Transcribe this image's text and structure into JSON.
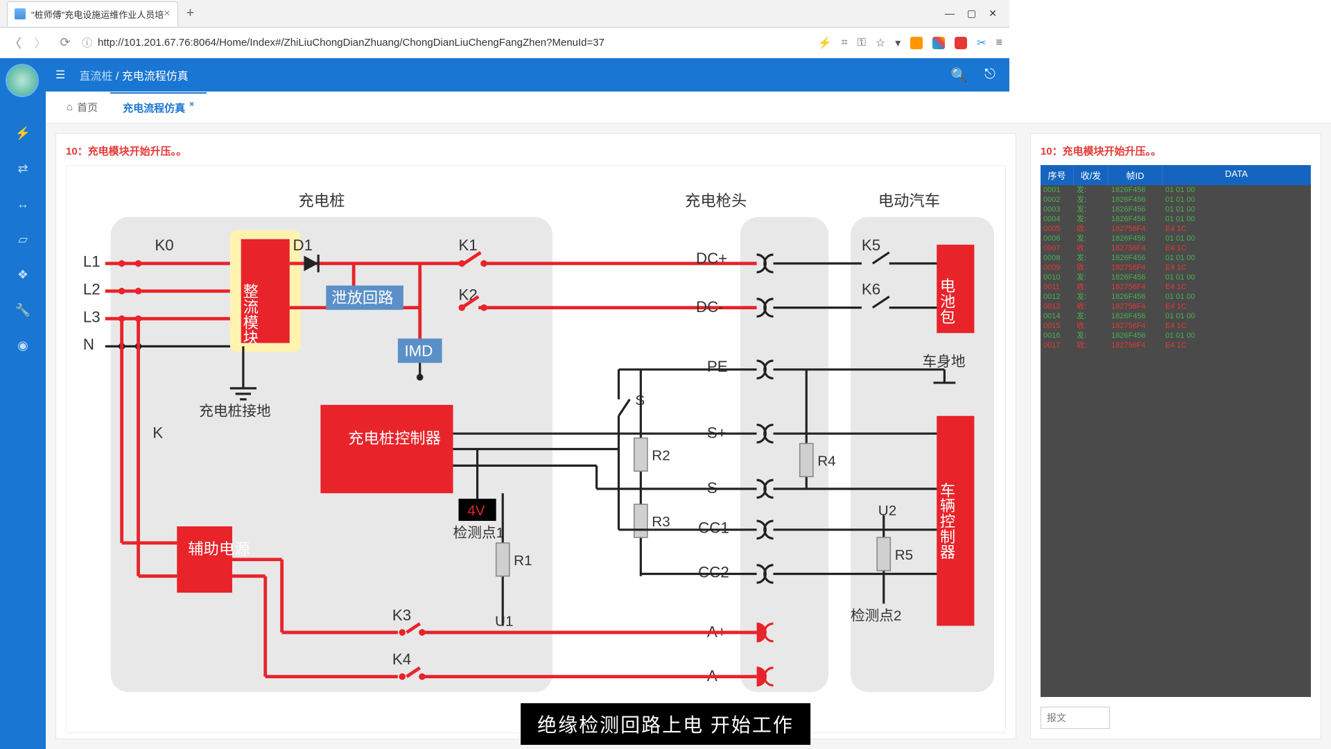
{
  "browser": {
    "tab_title": "\"桩师傅\"充电设施运维作业人员培",
    "url": "http://101.201.67.76:8064/Home/Index#/ZhiLiuChongDianZhuang/ChongDianLiuChengFangZhen?MenuId=37"
  },
  "header": {
    "crumb1": "直流桩",
    "crumb2": "充电流程仿真"
  },
  "tabs": {
    "home": "首页",
    "active": "充电流程仿真"
  },
  "step_title": "10：充电模块开始升压。。",
  "diagram": {
    "sections": {
      "pile": "充电桩",
      "gun": "充电枪头",
      "ev": "电动汽车"
    },
    "labels": {
      "L1": "L1",
      "L2": "L2",
      "L3": "L3",
      "N": "N",
      "K0": "K0",
      "K": "K",
      "D1": "D1",
      "K1": "K1",
      "K2": "K2",
      "K3": "K3",
      "K4": "K4",
      "K5": "K5",
      "K6": "K6",
      "rect": "整流模块",
      "discharge": "泄放回路",
      "IMD": "IMD",
      "pile_gnd": "充电桩接地",
      "body_gnd": "车身地",
      "controller": "充电桩控制器",
      "aux": "辅助电源",
      "det1": "检测点1",
      "det2": "检测点2",
      "volt": "4V",
      "R1": "R1",
      "R2": "R2",
      "R3": "R3",
      "R4": "R4",
      "R5": "R5",
      "U1": "U1",
      "U2": "U2",
      "S": "S",
      "DCp": "DC+",
      "DCm": "DC-",
      "PE": "PE",
      "Sp": "S+",
      "Sm": "S-",
      "CC1": "CC1",
      "CC2": "CC2",
      "Ap": "A+",
      "Am": "A-",
      "battery": "电池包",
      "vcu": "车辆控制器"
    }
  },
  "data_table": {
    "headers": {
      "seq": "序号",
      "sr": "收/发",
      "id": "帧ID",
      "data": "DATA"
    },
    "rows": [
      {
        "seq": "0001",
        "sr": "发:",
        "id": "1826F456",
        "data": "01 01 00",
        "dir": "tx"
      },
      {
        "seq": "0002",
        "sr": "发:",
        "id": "1826F456",
        "data": "01 01 00",
        "dir": "tx"
      },
      {
        "seq": "0003",
        "sr": "发:",
        "id": "1826F456",
        "data": "01 01 00",
        "dir": "tx"
      },
      {
        "seq": "0004",
        "sr": "发:",
        "id": "1826F456",
        "data": "01 01 00",
        "dir": "tx"
      },
      {
        "seq": "0005",
        "sr": "收:",
        "id": "182756F4",
        "data": "E4 1C",
        "dir": "rx"
      },
      {
        "seq": "0006",
        "sr": "发:",
        "id": "1826F456",
        "data": "01 01 00",
        "dir": "tx"
      },
      {
        "seq": "0007",
        "sr": "收:",
        "id": "182756F4",
        "data": "E4 1C",
        "dir": "rx"
      },
      {
        "seq": "0008",
        "sr": "发:",
        "id": "1826F456",
        "data": "01 01 00",
        "dir": "tx"
      },
      {
        "seq": "0009",
        "sr": "收:",
        "id": "182756F4",
        "data": "E4 1C",
        "dir": "rx"
      },
      {
        "seq": "0010",
        "sr": "发:",
        "id": "1826F456",
        "data": "01 01 00",
        "dir": "tx"
      },
      {
        "seq": "0011",
        "sr": "收:",
        "id": "182756F4",
        "data": "E4 1C",
        "dir": "rx"
      },
      {
        "seq": "0012",
        "sr": "发:",
        "id": "1826F456",
        "data": "01 01 00",
        "dir": "tx"
      },
      {
        "seq": "0013",
        "sr": "收:",
        "id": "182756F4",
        "data": "E4 1C",
        "dir": "rx"
      },
      {
        "seq": "0014",
        "sr": "发:",
        "id": "1826F456",
        "data": "01 01 00",
        "dir": "tx"
      },
      {
        "seq": "0015",
        "sr": "收:",
        "id": "182756F4",
        "data": "E4 1C",
        "dir": "rx"
      },
      {
        "seq": "0016",
        "sr": "发:",
        "id": "1826F456",
        "data": "01 01 00",
        "dir": "tx"
      },
      {
        "seq": "0017",
        "sr": "收:",
        "id": "182756F4",
        "data": "E4 1C",
        "dir": "rx"
      }
    ]
  },
  "msg_placeholder": "报文",
  "caption": "绝缘检测回路上电 开始工作",
  "colors": {
    "red": "#e8232a",
    "blue": "#1976d2",
    "grey_bg": "#e8e8e8",
    "glow": "#fff3b0"
  }
}
